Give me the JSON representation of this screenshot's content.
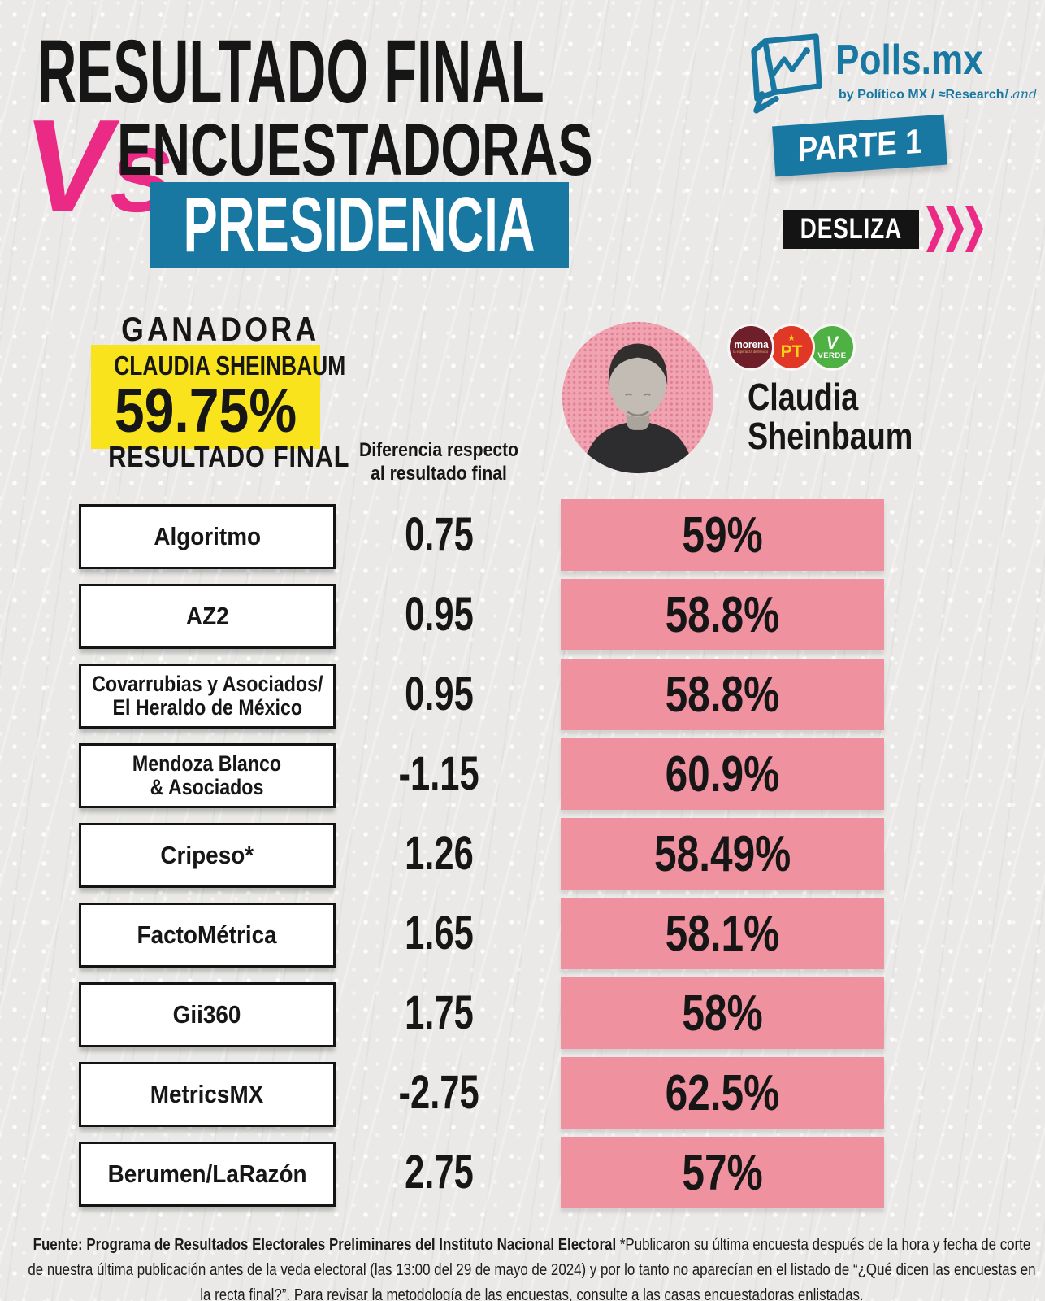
{
  "header": {
    "title_line1": "RESULTADO FINAL",
    "vs": "VS",
    "title_line2": "ENCUESTADORAS",
    "title_banner": "PRESIDENCIA",
    "logo": {
      "name": "Polls.mx",
      "tagline_by": "by Político MX",
      "tagline_sep": "/",
      "tagline_brand": "≈Research",
      "tagline_script": "Land",
      "icon": "chart-speech-bubble-icon"
    },
    "parte_badge": "PARTE 1",
    "desliza_badge": "DESLIZA",
    "desliza_arrows_icon": "triple-chevron-right"
  },
  "winner": {
    "label": "GANADORA",
    "name": "CLAUDIA SHEINBAUM",
    "percent": "59.75%",
    "sublabel": "RESULTADO FINAL"
  },
  "candidate": {
    "photo": "claudia-sheinbaum-portrait",
    "name_line1": "Claudia",
    "name_line2": "Sheinbaum",
    "parties": {
      "morena_label": "morena",
      "morena_sub": "la esperanza de México",
      "pt_star": "★",
      "pt_label": "PT",
      "verde_v": "V",
      "verde_label": "VERDE"
    }
  },
  "table": {
    "diff_header_line1": "Diferencia respecto",
    "diff_header_line2": "al resultado final",
    "rows": [
      {
        "pollster_lines": [
          "Algoritmo"
        ],
        "diff": "0.75",
        "percent": "59%"
      },
      {
        "pollster_lines": [
          "AZ2"
        ],
        "diff": "0.95",
        "percent": "58.8%"
      },
      {
        "pollster_lines": [
          "Covarrubias y Asociados/",
          "El Heraldo de México"
        ],
        "diff": "0.95",
        "percent": "58.8%"
      },
      {
        "pollster_lines": [
          "Mendoza Blanco",
          "& Asociados"
        ],
        "diff": "-1.15",
        "percent": "60.9%"
      },
      {
        "pollster_lines": [
          "Cripeso*"
        ],
        "diff": "1.26",
        "percent": "58.49%"
      },
      {
        "pollster_lines": [
          "FactoMétrica"
        ],
        "diff": "1.65",
        "percent": "58.1%"
      },
      {
        "pollster_lines": [
          "Gii360"
        ],
        "diff": "1.75",
        "percent": "58%"
      },
      {
        "pollster_lines": [
          "MetricsMX"
        ],
        "diff": "-2.75",
        "percent": "62.5%"
      },
      {
        "pollster_lines": [
          "Berumen/LaRazón"
        ],
        "diff": "2.75",
        "percent": "57%"
      }
    ]
  },
  "footer": {
    "source_bold": "Fuente: Programa de Resultados Electorales Preliminares del Instituto Nacional Electoral",
    "note": " *Publicaron su última encuesta después de la hora y fecha de corte de nuestra última publicación antes de la veda electoral (las 13:00 del 29 de mayo de 2024) y por lo tanto no aparecían en el listado de “¿Qué dicen las encuestas en la recta final?”. Para revisar la metodología de las encuestas, consulte a las casas encuestadoras enlistadas."
  },
  "colors": {
    "teal": "#1878a2",
    "pink": "#ea2a84",
    "bar_pink": "#f0919f",
    "yellow": "#f8e31c",
    "ink": "#161616",
    "morena": "#6e1f2a",
    "ptred": "#e03726",
    "verde": "#4fb043"
  },
  "chart_data": {
    "type": "table",
    "title": "Resultado Final vs Encuestadoras — Presidencia (Parte 1)",
    "final_result": {
      "candidate": "Claudia Sheinbaum",
      "value_percent": 59.75,
      "label": "Resultado final"
    },
    "columns": [
      "Encuestadora",
      "Diferencia respecto al resultado final",
      "Claudia Sheinbaum (%)"
    ],
    "rows": [
      {
        "pollster": "Algoritmo",
        "diff": 0.75,
        "percent": 59.0
      },
      {
        "pollster": "AZ2",
        "diff": 0.95,
        "percent": 58.8
      },
      {
        "pollster": "Covarrubias y Asociados/El Heraldo de México",
        "diff": 0.95,
        "percent": 58.8
      },
      {
        "pollster": "Mendoza Blanco & Asociados",
        "diff": -1.15,
        "percent": 60.9
      },
      {
        "pollster": "Cripeso*",
        "diff": 1.26,
        "percent": 58.49
      },
      {
        "pollster": "FactoMétrica",
        "diff": 1.65,
        "percent": 58.1
      },
      {
        "pollster": "Gii360",
        "diff": 1.75,
        "percent": 58.0
      },
      {
        "pollster": "MetricsMX",
        "diff": -2.75,
        "percent": 62.5
      },
      {
        "pollster": "Berumen/LaRazón",
        "diff": 2.75,
        "percent": 57.0
      }
    ],
    "footnote_marker": "*"
  }
}
